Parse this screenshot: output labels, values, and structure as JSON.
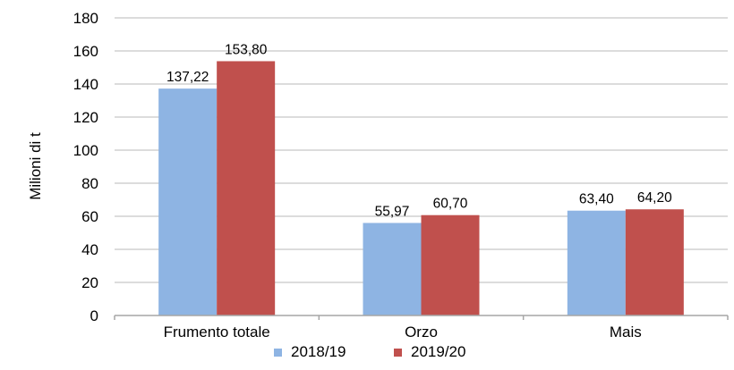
{
  "chart_data": {
    "type": "bar",
    "title": "",
    "xlabel": "",
    "ylabel": "Milioni di t",
    "ylim": [
      0,
      180
    ],
    "yticks": [
      0,
      20,
      40,
      60,
      80,
      100,
      120,
      140,
      160,
      180
    ],
    "grid": true,
    "legend_position": "bottom",
    "categories": [
      "Frumento totale",
      "Orzo",
      "Mais"
    ],
    "series": [
      {
        "name": "2018/19",
        "color": "#8EB4E3",
        "values": [
          137.22,
          55.97,
          63.4
        ],
        "labels": [
          "137,22",
          "55,97",
          "63,40"
        ]
      },
      {
        "name": "2019/20",
        "color": "#C0504D",
        "values": [
          153.8,
          60.7,
          64.2
        ],
        "labels": [
          "153,80",
          "60,70",
          "64,20"
        ]
      }
    ]
  }
}
